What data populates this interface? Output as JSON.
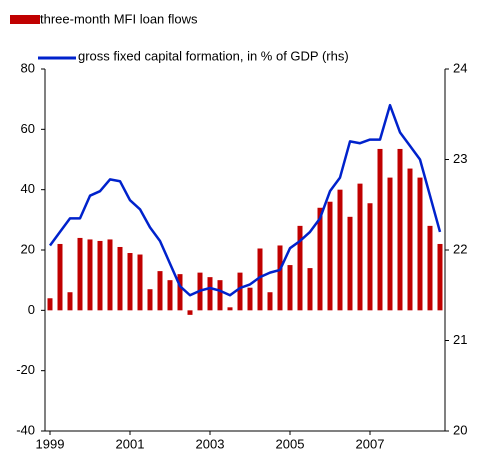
{
  "chart_data": {
    "type": "bar_line",
    "categories": [
      "1999",
      null,
      null,
      null,
      null,
      null,
      null,
      null,
      "2001",
      null,
      null,
      null,
      null,
      null,
      null,
      null,
      "2003",
      null,
      null,
      null,
      null,
      null,
      null,
      null,
      "2005",
      null,
      null,
      null,
      null,
      null,
      null,
      null,
      "2007",
      null,
      null,
      null,
      null,
      null,
      null,
      null
    ],
    "series": [
      {
        "name": "three-month MFI loan flows",
        "color": "#c00000",
        "kind": "bar",
        "values": [
          4,
          22,
          6,
          24,
          23.5,
          23,
          23.5,
          21,
          19,
          18.5,
          7,
          13,
          10,
          12,
          -1.5,
          12.5,
          11,
          10,
          1,
          12.5,
          7.5,
          20.5,
          6,
          21.5,
          15,
          28,
          14,
          34,
          36,
          40,
          31,
          42,
          35.5,
          53.5,
          44,
          53.5,
          47,
          44,
          28,
          22
        ]
      },
      {
        "name": "gross fixed capital formation, in % of GDP (rhs)",
        "color": "#0022cc",
        "kind": "line",
        "axis": "y2",
        "values": [
          22.05,
          22.2,
          22.35,
          22.35,
          22.6,
          22.65,
          22.78,
          22.76,
          22.55,
          22.45,
          22.25,
          22.1,
          21.85,
          21.6,
          21.5,
          21.55,
          21.58,
          21.55,
          21.5,
          21.58,
          21.62,
          21.7,
          21.75,
          21.78,
          22.02,
          22.1,
          22.2,
          22.35,
          22.65,
          22.8,
          23.2,
          23.18,
          23.22,
          23.22,
          23.6,
          23.3,
          23.15,
          23.0,
          22.6,
          22.2
        ]
      }
    ],
    "ylim": [
      -40,
      80
    ],
    "yticks": [
      -40,
      -20,
      0,
      20,
      40,
      60,
      80
    ],
    "y2lim": [
      20,
      24
    ],
    "y2ticks": [
      20,
      21,
      22,
      23,
      24
    ]
  }
}
